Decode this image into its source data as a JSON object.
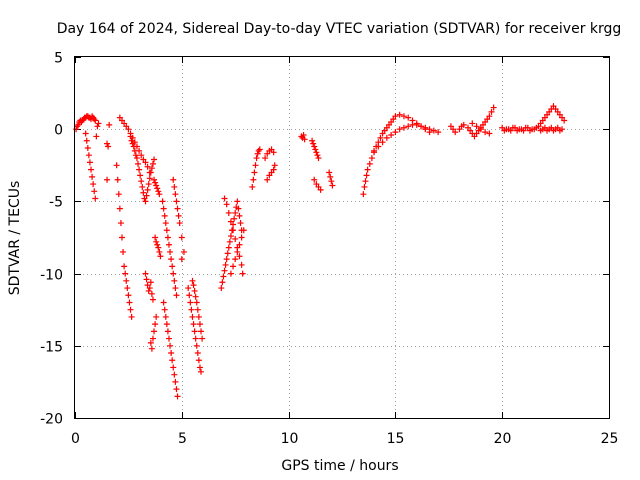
{
  "chart_data": {
    "type": "scatter",
    "title": "Day 164 of 2024, Sidereal Day-to-day VTEC variation (SDTVAR) for receiver krgg",
    "xlabel": "GPS time / hours",
    "ylabel": "SDTVAR / TECUs",
    "xlim": [
      0,
      25
    ],
    "ylim": [
      -20,
      5
    ],
    "xticks": [
      "0",
      "5",
      "10",
      "15",
      "20",
      "25"
    ],
    "yticks": [
      "5",
      "0",
      "-5",
      "-10",
      "-15",
      "-20"
    ],
    "grid": true,
    "marker": "plus",
    "color": "#ff0000",
    "series": [
      {
        "name": "SDTVAR",
        "x": [
          0.05,
          0.1,
          0.15,
          0.2,
          0.25,
          0.3,
          0.35,
          0.4,
          0.45,
          0.5,
          0.55,
          0.6,
          0.65,
          0.7,
          0.75,
          0.8,
          0.85,
          0.9,
          0.95,
          0.5,
          0.55,
          0.6,
          0.65,
          0.7,
          0.75,
          0.8,
          0.85,
          0.9,
          0.95,
          1.0,
          1.05,
          1.1,
          1.5,
          1.55,
          1.6,
          1.5,
          1.95,
          2.0,
          2.05,
          2.1,
          2.15,
          2.2,
          2.25,
          2.3,
          2.35,
          2.4,
          2.45,
          2.5,
          2.55,
          2.6,
          2.65,
          2.1,
          2.2,
          2.3,
          2.4,
          2.5,
          2.6,
          2.7,
          2.8,
          2.9,
          3.0,
          3.1,
          3.2,
          3.3,
          3.4,
          3.5,
          2.6,
          2.65,
          2.7,
          2.75,
          2.8,
          2.85,
          2.9,
          2.95,
          3.0,
          3.05,
          3.1,
          3.15,
          3.2,
          3.25,
          3.3,
          3.35,
          3.4,
          3.45,
          3.5,
          3.55,
          3.6,
          3.65,
          3.7,
          3.3,
          3.35,
          3.4,
          3.45,
          3.5,
          3.55,
          3.6,
          3.65,
          3.75,
          3.8,
          3.85,
          3.9,
          3.95,
          4.0,
          3.55,
          3.6,
          3.65,
          3.7,
          3.75,
          3.8,
          3.7,
          3.75,
          3.8,
          3.85,
          3.9,
          3.95,
          4.1,
          4.15,
          4.2,
          4.25,
          4.3,
          4.35,
          4.4,
          4.45,
          4.5,
          4.55,
          4.6,
          4.65,
          4.7,
          4.75,
          4.15,
          4.2,
          4.25,
          4.3,
          4.35,
          4.4,
          4.45,
          4.5,
          4.55,
          4.6,
          4.65,
          4.7,
          4.75,
          4.8,
          4.6,
          4.65,
          4.7,
          4.75,
          4.8,
          4.85,
          4.9,
          5.0,
          5.1,
          5.0,
          5.3,
          5.35,
          5.4,
          5.45,
          5.5,
          5.55,
          5.6,
          5.65,
          5.7,
          5.75,
          5.8,
          5.85,
          5.9,
          5.5,
          5.55,
          5.6,
          5.65,
          5.7,
          5.75,
          5.8,
          5.85,
          5.9,
          5.95,
          6.85,
          6.9,
          6.95,
          7.0,
          7.05,
          7.1,
          7.15,
          7.2,
          7.25,
          7.3,
          7.35,
          7.4,
          7.45,
          7.5,
          7.55,
          7.6,
          7.65,
          7.7,
          7.75,
          7.8,
          7.0,
          7.1,
          7.2,
          7.3,
          7.4,
          7.5,
          7.6,
          7.7,
          7.8,
          7.85,
          7.3,
          7.4,
          7.5,
          7.6,
          7.7,
          7.8,
          7.9,
          8.3,
          8.35,
          8.4,
          8.45,
          8.5,
          8.55,
          8.6,
          8.65,
          8.9,
          9.0,
          9.1,
          9.2,
          9.3,
          9.0,
          9.1,
          9.2,
          9.3,
          9.35,
          10.6,
          10.65,
          10.7,
          10.75,
          11.1,
          11.15,
          11.2,
          11.25,
          11.3,
          11.35,
          11.4,
          11.2,
          11.3,
          11.4,
          11.5,
          11.9,
          11.95,
          12.0,
          12.05,
          13.5,
          13.55,
          13.6,
          13.65,
          13.7,
          13.8,
          13.9,
          14.0,
          14.1,
          14.2,
          14.3,
          14.4,
          14.5,
          14.6,
          14.7,
          14.8,
          14.9,
          15.0,
          15.2,
          15.4,
          15.6,
          15.8,
          16.0,
          16.2,
          16.4,
          16.6,
          14.0,
          14.2,
          14.4,
          14.6,
          14.8,
          15.0,
          15.2,
          15.4,
          15.6,
          15.8,
          16.0,
          16.2,
          16.4,
          16.6,
          16.8,
          17.0,
          17.6,
          17.7,
          17.8,
          18.0,
          18.1,
          18.2,
          18.4,
          18.5,
          18.6,
          18.7,
          18.8,
          18.9,
          19.0,
          19.1,
          19.2,
          19.3,
          19.4,
          19.5,
          19.6,
          18.6,
          18.8,
          19.0,
          19.2,
          19.4,
          20.0,
          20.2,
          20.4,
          20.6,
          20.8,
          21.0,
          21.2,
          21.4,
          21.6,
          20.1,
          20.3,
          20.5,
          20.7,
          20.9,
          21.1,
          21.3,
          21.5,
          21.7,
          21.8,
          21.9,
          22.0,
          22.1,
          22.2,
          22.3,
          22.4,
          22.5,
          22.6,
          22.7,
          22.8,
          22.9,
          21.8,
          21.9,
          22.0,
          22.1,
          22.2,
          22.3,
          22.4,
          22.5,
          22.6,
          22.7,
          22.8
        ],
        "y": [
          0.0,
          0.2,
          0.3,
          0.5,
          0.6,
          0.5,
          0.6,
          0.7,
          0.8,
          0.8,
          0.9,
          0.9,
          0.8,
          0.8,
          0.7,
          0.9,
          0.8,
          0.7,
          0.6,
          -0.3,
          -0.8,
          -1.3,
          -1.8,
          -2.3,
          -2.8,
          -3.3,
          -3.8,
          -4.3,
          -4.8,
          -0.5,
          0.2,
          0.4,
          -1.0,
          -1.2,
          0.3,
          -3.5,
          -2.5,
          -3.5,
          -4.5,
          -5.5,
          -6.5,
          -7.5,
          -8.5,
          -9.5,
          -10.0,
          -10.5,
          -11.0,
          -11.5,
          -12.0,
          -12.5,
          -13.0,
          0.8,
          0.6,
          0.4,
          0.2,
          0.0,
          -0.3,
          -0.6,
          -0.9,
          -1.2,
          -1.5,
          -1.8,
          -2.1,
          -2.3,
          -2.6,
          -3.0,
          -0.5,
          -0.8,
          -1.0,
          -1.2,
          -1.5,
          -1.8,
          -2.0,
          -2.4,
          -2.8,
          -3.2,
          -3.6,
          -4.0,
          -4.4,
          -4.8,
          -5.0,
          -4.6,
          -4.2,
          -3.8,
          -3.4,
          -3.0,
          -2.7,
          -2.4,
          -2.1,
          -10.0,
          -10.4,
          -10.8,
          -11.2,
          -11.0,
          -10.6,
          -11.4,
          -11.8,
          -7.5,
          -7.8,
          -8.0,
          -8.2,
          -8.5,
          -8.8,
          -14.8,
          -15.2,
          -14.5,
          -14.0,
          -13.5,
          -13.0,
          -3.5,
          -3.7,
          -3.9,
          -4.1,
          -4.3,
          -4.5,
          -5.0,
          -5.5,
          -6.0,
          -6.5,
          -7.0,
          -7.5,
          -8.0,
          -8.5,
          -9.0,
          -9.5,
          -10.0,
          -10.5,
          -11.0,
          -11.5,
          -12.0,
          -12.5,
          -13.0,
          -13.5,
          -14.0,
          -14.5,
          -15.0,
          -15.5,
          -16.0,
          -16.5,
          -17.0,
          -17.5,
          -18.0,
          -18.5,
          -3.5,
          -4.0,
          -4.5,
          -5.0,
          -5.5,
          -6.0,
          -6.5,
          -7.5,
          -8.5,
          -9.0,
          -11.0,
          -11.5,
          -12.0,
          -12.5,
          -13.0,
          -13.5,
          -14.0,
          -14.5,
          -15.0,
          -15.5,
          -16.0,
          -16.5,
          -16.8,
          -10.5,
          -10.8,
          -11.2,
          -11.6,
          -12.0,
          -12.5,
          -13.0,
          -13.5,
          -14.0,
          -14.5,
          -11.0,
          -10.6,
          -10.2,
          -9.8,
          -9.4,
          -9.0,
          -8.6,
          -8.2,
          -7.8,
          -7.4,
          -7.0,
          -6.6,
          -6.2,
          -5.8,
          -5.4,
          -5.0,
          -5.5,
          -6.0,
          -6.5,
          -7.0,
          -4.8,
          -5.2,
          -5.8,
          -6.4,
          -7.0,
          -7.6,
          -8.2,
          -8.8,
          -9.4,
          -10.0,
          -10.0,
          -9.5,
          -9.0,
          -8.5,
          -8.0,
          -7.5,
          -7.0,
          -4.0,
          -3.5,
          -3.0,
          -2.5,
          -2.0,
          -1.7,
          -1.5,
          -1.4,
          -2.0,
          -1.7,
          -1.5,
          -1.4,
          -1.6,
          -3.5,
          -3.2,
          -3.0,
          -2.8,
          -2.5,
          -0.5,
          -0.6,
          -0.4,
          -0.7,
          -0.8,
          -1.0,
          -1.2,
          -1.4,
          -1.6,
          -1.8,
          -2.0,
          -3.5,
          -3.8,
          -4.0,
          -4.2,
          -3.0,
          -3.3,
          -3.6,
          -3.9,
          -4.5,
          -4.0,
          -3.6,
          -3.2,
          -2.8,
          -2.4,
          -2.0,
          -1.6,
          -1.2,
          -0.9,
          -0.6,
          -0.3,
          -0.1,
          0.1,
          0.3,
          0.5,
          0.7,
          0.9,
          1.0,
          0.9,
          0.8,
          0.6,
          0.4,
          0.2,
          0.0,
          -0.2,
          -1.5,
          -1.2,
          -0.9,
          -0.6,
          -0.4,
          -0.2,
          0.0,
          0.1,
          0.2,
          0.3,
          0.3,
          0.2,
          0.1,
          0.0,
          -0.1,
          -0.2,
          0.2,
          0.0,
          -0.2,
          0.0,
          0.2,
          0.3,
          0.1,
          -0.1,
          -0.3,
          -0.5,
          -0.3,
          -0.1,
          0.1,
          0.3,
          0.5,
          0.7,
          0.9,
          1.2,
          1.5,
          0.4,
          0.2,
          0.0,
          -0.2,
          -0.3,
          0.1,
          0.0,
          -0.1,
          0.1,
          0.0,
          -0.1,
          0.1,
          0.0,
          0.1,
          -0.1,
          0.0,
          0.1,
          -0.1,
          0.0,
          0.1,
          -0.1,
          0.0,
          0.2,
          0.4,
          0.6,
          0.8,
          1.0,
          1.2,
          1.4,
          1.6,
          1.4,
          1.2,
          1.0,
          0.8,
          0.6,
          -0.1,
          0.0,
          0.1,
          -0.1,
          0.0,
          0.1,
          -0.1,
          0.0,
          0.1,
          -0.1,
          0.0
        ]
      }
    ]
  }
}
